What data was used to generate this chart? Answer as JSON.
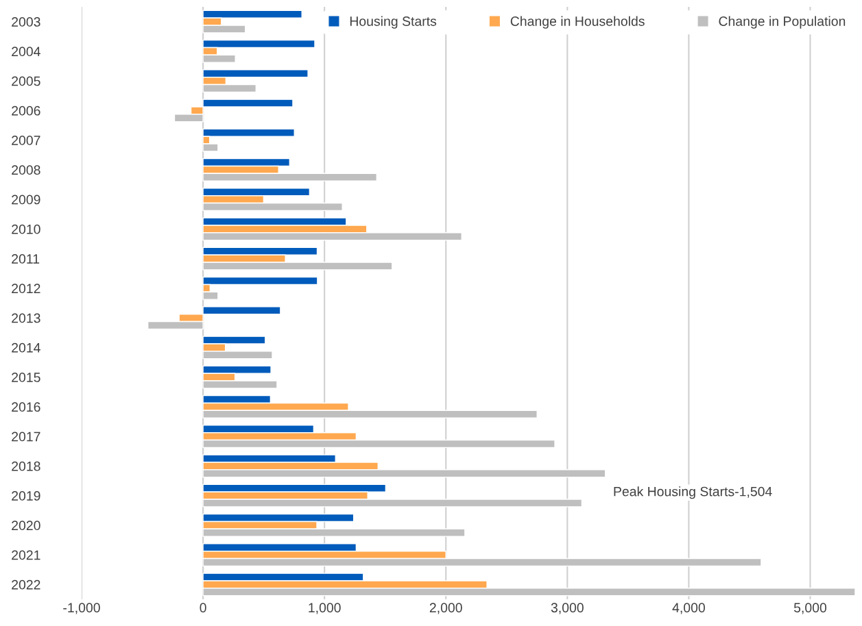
{
  "chart_data": {
    "type": "bar",
    "orientation": "horizontal",
    "categories": [
      "2003",
      "2004",
      "2005",
      "2006",
      "2007",
      "2008",
      "2009",
      "2010",
      "2011",
      "2012",
      "2013",
      "2014",
      "2015",
      "2016",
      "2017",
      "2018",
      "2019",
      "2020",
      "2021",
      "2022"
    ],
    "series": [
      {
        "name": "Housing Starts",
        "color": "#005bbb",
        "values": [
          814,
          920,
          864,
          739,
          752,
          713,
          877,
          1179,
          940,
          942,
          637,
          512,
          559,
          555,
          911,
          1091,
          1504,
          1240,
          1261,
          1320
        ]
      },
      {
        "name": "Change in Households",
        "color": "#ffa84f",
        "values": [
          151,
          117,
          188,
          -99,
          54,
          622,
          499,
          1348,
          678,
          58,
          -197,
          184,
          263,
          1197,
          1261,
          1441,
          1356,
          937,
          2000,
          2338
        ]
      },
      {
        "name": "Change in Population",
        "color": "#bfbfbf",
        "values": [
          348,
          266,
          436,
          -235,
          123,
          1430,
          1147,
          2130,
          1557,
          123,
          -454,
          570,
          609,
          2751,
          2897,
          3313,
          3119,
          2156,
          4596,
          5370
        ]
      }
    ],
    "xlim": [
      -1000,
      5370
    ],
    "xticks": [
      {
        "value": -1000,
        "label": "-1,000"
      },
      0,
      {
        "value": 1000,
        "label": "1,000"
      },
      {
        "value": 2000,
        "label": "2,000"
      },
      {
        "value": 3000,
        "label": "3,000"
      },
      {
        "value": 4000,
        "label": "4,000"
      },
      {
        "value": 5000,
        "label": "5,000"
      }
    ],
    "grid": "x",
    "legend": "top right",
    "annotations": [
      "Peak Housing Starts-1,504"
    ]
  }
}
